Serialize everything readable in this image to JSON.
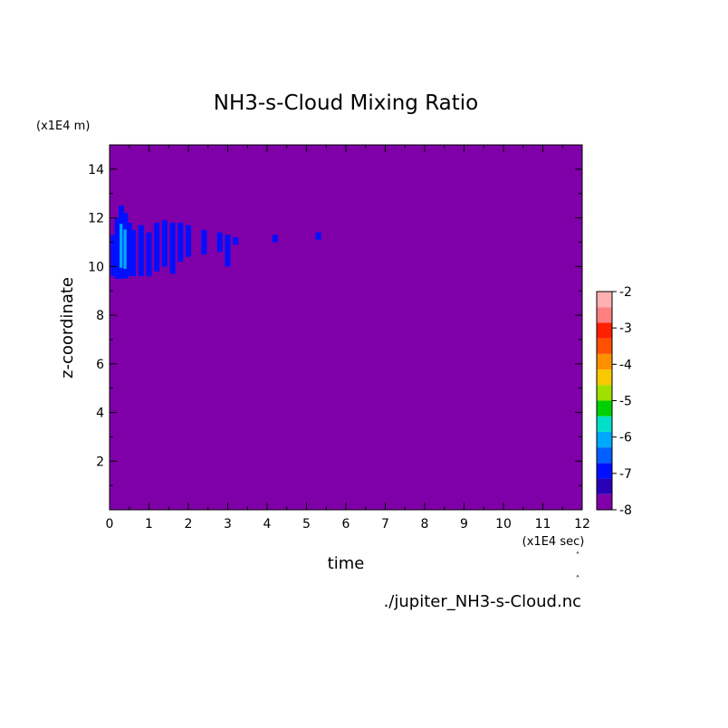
{
  "chart_data": {
    "type": "heatmap",
    "title": "NH3-s-Cloud Mixing Ratio",
    "xlabel": "time",
    "ylabel": "z-coordinate",
    "x_unit": "(x1E4 sec)",
    "y_unit": "(x1E4 m)",
    "xlim": [
      0,
      12
    ],
    "ylim": [
      0,
      15
    ],
    "x_ticks": [
      "0",
      "1",
      "2",
      "3",
      "4",
      "5",
      "6",
      "7",
      "8",
      "9",
      "10",
      "11",
      "12"
    ],
    "y_ticks": [
      "2",
      "4",
      "6",
      "8",
      "10",
      "12",
      "14"
    ],
    "background_level": -8,
    "colorbar": {
      "labels": [
        "-2",
        "-3",
        "-4",
        "-5",
        "-6",
        "-7",
        "-8"
      ],
      "min": -8,
      "max": -2,
      "colors": [
        "#7f00a8",
        "#2a00b8",
        "#0010ff",
        "#0060ff",
        "#00a8ff",
        "#00e0c8",
        "#00d000",
        "#a0e000",
        "#f8c800",
        "#ff9000",
        "#ff5000",
        "#ff2000",
        "#ff8080",
        "#ffb0b0"
      ]
    },
    "cloud_features": [
      {
        "x": 0.1,
        "y_bottom": 9.6,
        "y_top": 11.3,
        "level": -7
      },
      {
        "x": 0.2,
        "y_bottom": 9.5,
        "y_top": 12.0,
        "level": -7
      },
      {
        "x": 0.3,
        "y_bottom": 9.5,
        "y_top": 12.5,
        "level": -6
      },
      {
        "x": 0.4,
        "y_bottom": 9.5,
        "y_top": 12.2,
        "level": -6
      },
      {
        "x": 0.5,
        "y_bottom": 9.6,
        "y_top": 11.8,
        "level": -7
      },
      {
        "x": 0.6,
        "y_bottom": 9.6,
        "y_top": 11.5,
        "level": -7
      },
      {
        "x": 0.8,
        "y_bottom": 9.6,
        "y_top": 11.7,
        "level": -7
      },
      {
        "x": 1.0,
        "y_bottom": 9.6,
        "y_top": 11.4,
        "level": -7
      },
      {
        "x": 1.2,
        "y_bottom": 9.8,
        "y_top": 11.8,
        "level": -7
      },
      {
        "x": 1.4,
        "y_bottom": 10.0,
        "y_top": 11.9,
        "level": -7
      },
      {
        "x": 1.6,
        "y_bottom": 9.7,
        "y_top": 11.8,
        "level": -7
      },
      {
        "x": 1.8,
        "y_bottom": 10.2,
        "y_top": 11.8,
        "level": -7
      },
      {
        "x": 2.0,
        "y_bottom": 10.4,
        "y_top": 11.7,
        "level": -7
      },
      {
        "x": 2.4,
        "y_bottom": 10.5,
        "y_top": 11.5,
        "level": -7
      },
      {
        "x": 2.8,
        "y_bottom": 10.6,
        "y_top": 11.4,
        "level": -7
      },
      {
        "x": 3.0,
        "y_bottom": 10.0,
        "y_top": 11.3,
        "level": -7
      },
      {
        "x": 3.2,
        "y_bottom": 10.9,
        "y_top": 11.2,
        "level": -7
      },
      {
        "x": 4.2,
        "y_bottom": 11.0,
        "y_top": 11.3,
        "level": -7
      },
      {
        "x": 5.3,
        "y_bottom": 11.1,
        "y_top": 11.4,
        "level": -7
      }
    ]
  },
  "footer": {
    "filename": "./jupiter_NH3-s-Cloud.nc"
  }
}
